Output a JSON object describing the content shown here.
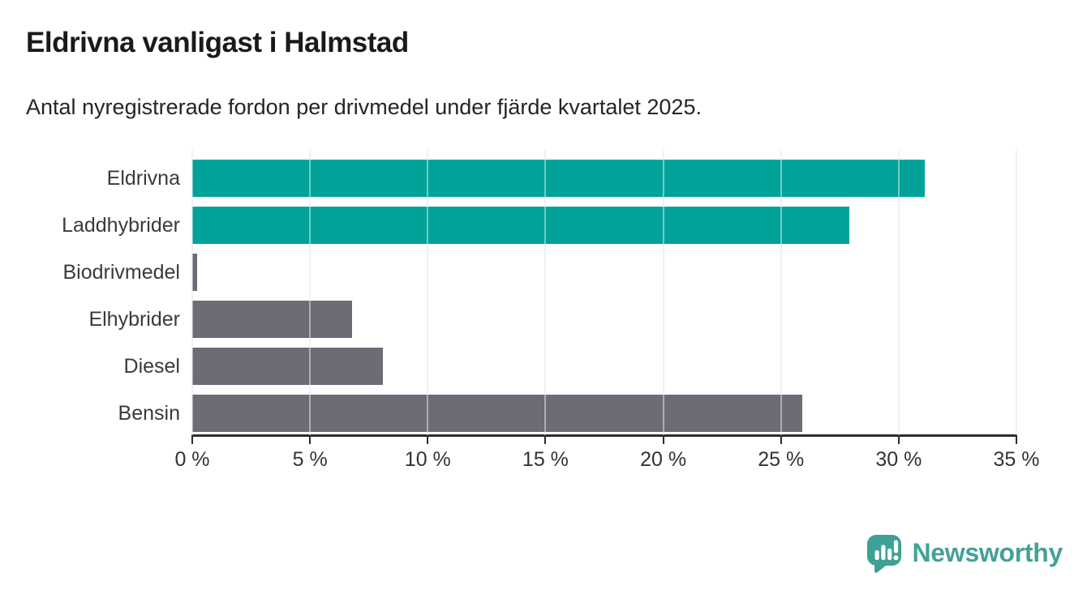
{
  "header": {
    "title": "Eldrivna vanligast i Halmstad",
    "subtitle": "Antal nyregistrerade fordon per drivmedel under fjärde kvartalet 2025."
  },
  "colors": {
    "accent_teal": "#00a29a",
    "neutral_gray": "#6e6b74",
    "grid": "#e6e6e6",
    "axis": "#2d2d2d",
    "logo_teal": "#3fa096",
    "brand_text_teal": "#43a197"
  },
  "chart_data": {
    "type": "bar",
    "orientation": "horizontal",
    "title": "Eldrivna vanligast i Halmstad",
    "subtitle": "Antal nyregistrerade fordon per drivmedel under fjärde kvartalet 2025.",
    "categories": [
      "Eldrivna",
      "Laddhybrider",
      "Biodrivmedel",
      "Elhybrider",
      "Diesel",
      "Bensin"
    ],
    "values": [
      31.1,
      27.9,
      0.2,
      6.8,
      8.1,
      25.9
    ],
    "unit": "%",
    "bar_colors": [
      "#00a29a",
      "#00a29a",
      "#6e6b74",
      "#6e6b74",
      "#6e6b74",
      "#6e6b74"
    ],
    "xlim": [
      0,
      35
    ],
    "x_ticks": [
      0,
      5,
      10,
      15,
      20,
      25,
      30,
      35
    ],
    "x_tick_labels": [
      "0 %",
      "5 %",
      "10 %",
      "15 %",
      "20 %",
      "25 %",
      "30 %",
      "35 %"
    ],
    "grid": "vertical",
    "legend": "none"
  },
  "footer": {
    "brand": "Newsworthy",
    "logo_icon": "newsworthy-bubble-barchart-icon"
  }
}
